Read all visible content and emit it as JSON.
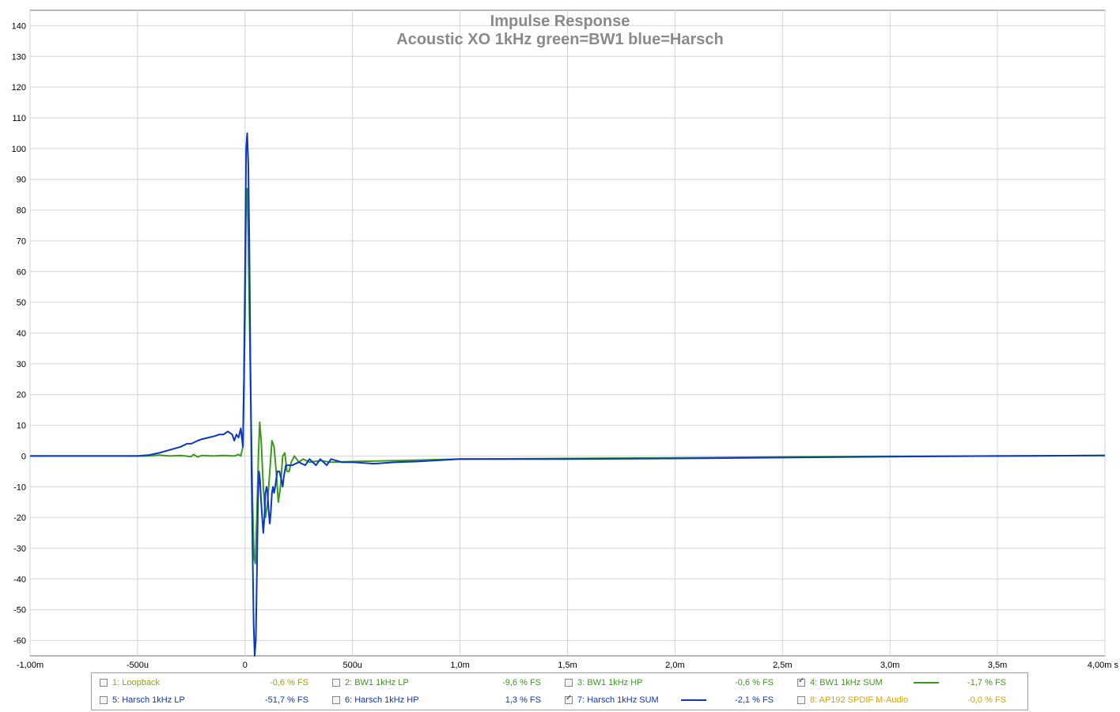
{
  "chart_data": {
    "type": "line",
    "title": "Impulse Response",
    "subtitle": "Acoustic XO 1kHz green=BW1 blue=Harsch",
    "xlim": [
      -1.0,
      4.0
    ],
    "ylim": [
      -65,
      145
    ],
    "x_unit": "ms",
    "grid": true,
    "x_ticks": [
      {
        "v": -1.0,
        "label": "-1,00m"
      },
      {
        "v": -0.5,
        "label": "-500u"
      },
      {
        "v": 0.0,
        "label": "0"
      },
      {
        "v": 0.5,
        "label": "500u"
      },
      {
        "v": 1.0,
        "label": "1,0m"
      },
      {
        "v": 1.5,
        "label": "1,5m"
      },
      {
        "v": 2.0,
        "label": "2,0m"
      },
      {
        "v": 2.5,
        "label": "2,5m"
      },
      {
        "v": 3.0,
        "label": "3,0m"
      },
      {
        "v": 3.5,
        "label": "3,5m"
      },
      {
        "v": 4.0,
        "label": "4,00m s"
      }
    ],
    "y_ticks": [
      140,
      130,
      120,
      110,
      100,
      90,
      80,
      70,
      60,
      50,
      40,
      30,
      20,
      10,
      0,
      -10,
      -20,
      -30,
      -40,
      -50,
      -60
    ],
    "series": [
      {
        "name": "4: BW1 1kHz SUM",
        "color": "#3a9a1c",
        "points": [
          [
            -1.0,
            0
          ],
          [
            -0.5,
            0
          ],
          [
            -0.45,
            0
          ],
          [
            -0.4,
            0.3
          ],
          [
            -0.35,
            0
          ],
          [
            -0.3,
            0.2
          ],
          [
            -0.25,
            -0.2
          ],
          [
            -0.24,
            0.5
          ],
          [
            -0.22,
            -0.3
          ],
          [
            -0.2,
            0.2
          ],
          [
            -0.15,
            0
          ],
          [
            -0.1,
            0.2
          ],
          [
            -0.05,
            0
          ],
          [
            -0.03,
            0.5
          ],
          [
            -0.02,
            0
          ],
          [
            -0.01,
            3
          ],
          [
            0.0,
            45
          ],
          [
            0.005,
            85
          ],
          [
            0.01,
            87
          ],
          [
            0.015,
            70
          ],
          [
            0.025,
            25
          ],
          [
            0.035,
            -15
          ],
          [
            0.042,
            -33
          ],
          [
            0.048,
            -35
          ],
          [
            0.055,
            -20
          ],
          [
            0.062,
            0
          ],
          [
            0.068,
            11
          ],
          [
            0.075,
            5
          ],
          [
            0.085,
            -10
          ],
          [
            0.095,
            -20
          ],
          [
            0.105,
            -15
          ],
          [
            0.115,
            -5
          ],
          [
            0.125,
            5
          ],
          [
            0.135,
            3
          ],
          [
            0.145,
            -5
          ],
          [
            0.155,
            -15
          ],
          [
            0.165,
            -10
          ],
          [
            0.175,
            0
          ],
          [
            0.185,
            1
          ],
          [
            0.195,
            -5
          ],
          [
            0.205,
            -5
          ],
          [
            0.215,
            -2
          ],
          [
            0.23,
            0
          ],
          [
            0.25,
            -2
          ],
          [
            0.27,
            -1
          ],
          [
            0.3,
            -2
          ],
          [
            0.35,
            -1.5
          ],
          [
            0.4,
            -2
          ],
          [
            0.5,
            -1.8
          ],
          [
            0.7,
            -1.5
          ],
          [
            1.0,
            -1
          ],
          [
            1.5,
            -0.8
          ],
          [
            2.0,
            -0.6
          ],
          [
            2.5,
            -0.3
          ],
          [
            3.0,
            -0.1
          ],
          [
            3.5,
            0
          ],
          [
            4.0,
            0.2
          ]
        ]
      },
      {
        "name": "7: Harsch 1kHz SUM",
        "color": "#0a37c8",
        "points": [
          [
            -1.0,
            0
          ],
          [
            -0.5,
            0
          ],
          [
            -0.45,
            0.3
          ],
          [
            -0.4,
            1
          ],
          [
            -0.35,
            2
          ],
          [
            -0.3,
            3
          ],
          [
            -0.27,
            4
          ],
          [
            -0.25,
            4
          ],
          [
            -0.22,
            5
          ],
          [
            -0.2,
            5.5
          ],
          [
            -0.17,
            6
          ],
          [
            -0.14,
            6.5
          ],
          [
            -0.12,
            7
          ],
          [
            -0.1,
            7
          ],
          [
            -0.08,
            8
          ],
          [
            -0.06,
            7
          ],
          [
            -0.05,
            5
          ],
          [
            -0.04,
            7
          ],
          [
            -0.03,
            6
          ],
          [
            -0.02,
            9
          ],
          [
            -0.01,
            3
          ],
          [
            -0.005,
            25
          ],
          [
            0.0,
            60
          ],
          [
            0.005,
            100
          ],
          [
            0.01,
            105
          ],
          [
            0.015,
            95
          ],
          [
            0.02,
            70
          ],
          [
            0.025,
            30
          ],
          [
            0.03,
            -5
          ],
          [
            0.035,
            -30
          ],
          [
            0.04,
            -55
          ],
          [
            0.045,
            -65
          ],
          [
            0.05,
            -60
          ],
          [
            0.055,
            -40
          ],
          [
            0.06,
            -15
          ],
          [
            0.065,
            -5
          ],
          [
            0.07,
            -8
          ],
          [
            0.075,
            -15
          ],
          [
            0.08,
            -20
          ],
          [
            0.085,
            -25
          ],
          [
            0.09,
            -20
          ],
          [
            0.095,
            -12
          ],
          [
            0.1,
            -10
          ],
          [
            0.105,
            -12
          ],
          [
            0.11,
            -18
          ],
          [
            0.115,
            -22
          ],
          [
            0.12,
            -18
          ],
          [
            0.125,
            -12
          ],
          [
            0.13,
            -10
          ],
          [
            0.135,
            -12
          ],
          [
            0.14,
            -10
          ],
          [
            0.15,
            -5
          ],
          [
            0.16,
            -5
          ],
          [
            0.17,
            -8
          ],
          [
            0.175,
            -10
          ],
          [
            0.18,
            -7
          ],
          [
            0.19,
            -3
          ],
          [
            0.2,
            -3
          ],
          [
            0.22,
            -3
          ],
          [
            0.25,
            -2
          ],
          [
            0.28,
            -3
          ],
          [
            0.3,
            -1
          ],
          [
            0.33,
            -3
          ],
          [
            0.35,
            -1
          ],
          [
            0.38,
            -3
          ],
          [
            0.4,
            -1
          ],
          [
            0.45,
            -2
          ],
          [
            0.5,
            -2
          ],
          [
            0.6,
            -2.5
          ],
          [
            0.7,
            -2
          ],
          [
            0.8,
            -1.8
          ],
          [
            1.0,
            -1
          ],
          [
            1.5,
            -1
          ],
          [
            2.0,
            -0.8
          ],
          [
            2.5,
            -0.5
          ],
          [
            3.0,
            -0.2
          ],
          [
            3.5,
            0
          ],
          [
            4.0,
            0.2
          ]
        ]
      }
    ]
  },
  "legend": [
    {
      "label": "1: Loopback",
      "value": "-0,6 % FS",
      "checked": false,
      "color": "#a0a000",
      "line": false
    },
    {
      "label": "2: BW1 1kHz LP",
      "value": "-9,6 % FS",
      "checked": false,
      "color": "#3a9a1c",
      "line": false
    },
    {
      "label": "3: BW1 1kHz HP",
      "value": "-0,6 % FS",
      "checked": false,
      "color": "#3a9a1c",
      "line": false
    },
    {
      "label": "4: BW1 1kHz SUM",
      "value": "-1,7 % FS",
      "checked": true,
      "color": "#3a9a1c",
      "line": true
    },
    {
      "label": "5: Harsch 1kHz LP",
      "value": "-51,7 % FS",
      "checked": false,
      "color": "#0a37c8",
      "line": false
    },
    {
      "label": "6: Harsch 1kHz HP",
      "value": "1,3 % FS",
      "checked": false,
      "color": "#0a37c8",
      "line": false
    },
    {
      "label": "7: Harsch 1kHz SUM",
      "value": "-2,1 % FS",
      "checked": true,
      "color": "#0a37c8",
      "line": true
    },
    {
      "label": "8: AP192 SPDIF M-Audio",
      "value": "-0,0 % FS",
      "checked": false,
      "color": "#e0a000",
      "line": false
    }
  ]
}
